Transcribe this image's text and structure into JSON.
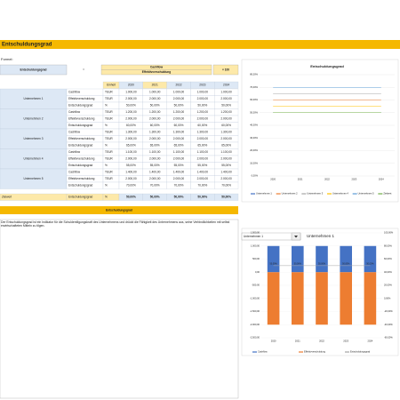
{
  "header": {
    "title": "Entschuldungsgrad"
  },
  "formula": {
    "label": "Formel:",
    "lhs": "Entschuldungsgrad",
    "equals": "=",
    "numerator": "Cashflow",
    "denominator": "Effektivverschuldung",
    "factor": "× 100"
  },
  "table": {
    "unit_header": "Einheit",
    "years": [
      "2020",
      "2021",
      "2022",
      "2023",
      "2024"
    ],
    "companies": [
      {
        "name": "Unternehmen 1",
        "rows": [
          {
            "label": "Cashflow",
            "unit": "TEUR",
            "values": [
              "1.000,00",
              "1.000,00",
              "1.000,00",
              "1.000,00",
              "1.000,00"
            ]
          },
          {
            "label": "Effektivverschuldung",
            "unit": "TEUR",
            "values": [
              "2.000,00",
              "2.000,00",
              "2.000,00",
              "2.000,00",
              "2.000,00"
            ]
          },
          {
            "label": "Entschuldungsgrad",
            "unit": "%",
            "values": [
              "50,00%",
              "50,00%",
              "50,00%",
              "50,00%",
              "50,00%"
            ]
          }
        ]
      },
      {
        "name": "Unternehmen 2",
        "rows": [
          {
            "label": "Cashflow",
            "unit": "TEUR",
            "values": [
              "1.200,00",
              "1.200,00",
              "1.200,00",
              "1.200,00",
              "1.200,00"
            ]
          },
          {
            "label": "Effektivverschuldung",
            "unit": "TEUR",
            "values": [
              "2.000,00",
              "2.000,00",
              "2.000,00",
              "2.000,00",
              "2.000,00"
            ]
          },
          {
            "label": "Entschuldungsgrad",
            "unit": "%",
            "values": [
              "60,00%",
              "60,00%",
              "60,00%",
              "60,00%",
              "60,00%"
            ]
          }
        ]
      },
      {
        "name": "Unternehmen 3",
        "rows": [
          {
            "label": "Cashflow",
            "unit": "TEUR",
            "values": [
              "1.300,00",
              "1.300,00",
              "1.300,00",
              "1.300,00",
              "1.300,00"
            ]
          },
          {
            "label": "Effektivverschuldung",
            "unit": "TEUR",
            "values": [
              "2.000,00",
              "2.000,00",
              "2.000,00",
              "2.000,00",
              "2.000,00"
            ]
          },
          {
            "label": "Entschuldungsgrad",
            "unit": "%",
            "values": [
              "65,00%",
              "65,00%",
              "65,00%",
              "65,00%",
              "65,00%"
            ]
          }
        ]
      },
      {
        "name": "Unternehmen 4",
        "rows": [
          {
            "label": "Cashflow",
            "unit": "TEUR",
            "values": [
              "1.100,00",
              "1.100,00",
              "1.100,00",
              "1.100,00",
              "1.100,00"
            ]
          },
          {
            "label": "Effektivverschuldung",
            "unit": "TEUR",
            "values": [
              "2.000,00",
              "2.000,00",
              "2.000,00",
              "2.000,00",
              "2.000,00"
            ]
          },
          {
            "label": "Entschuldungsgrad",
            "unit": "%",
            "values": [
              "55,00%",
              "55,00%",
              "55,00%",
              "55,00%",
              "55,00%"
            ]
          }
        ]
      },
      {
        "name": "Unternehmen 5",
        "rows": [
          {
            "label": "Cashflow",
            "unit": "TEUR",
            "values": [
              "1.400,00",
              "1.400,00",
              "1.400,00",
              "1.400,00",
              "1.400,00"
            ]
          },
          {
            "label": "Effektivverschuldung",
            "unit": "TEUR",
            "values": [
              "2.000,00",
              "2.000,00",
              "2.000,00",
              "2.000,00",
              "2.000,00"
            ]
          },
          {
            "label": "Entschuldungsgrad",
            "unit": "%",
            "values": [
              "70,00%",
              "70,00%",
              "70,00%",
              "70,00%",
              "70,00%"
            ]
          }
        ]
      }
    ],
    "target": {
      "name": "Zielwert",
      "label": "Entschuldungsgrad",
      "unit": "%",
      "values": [
        "50,00%",
        "50,00%",
        "50,00%",
        "50,00%",
        "50,00%"
      ]
    }
  },
  "section": {
    "title": "Entschuldungsgrad",
    "text": "Der Entschuldungsgrad ist ein Indikator für die Schuldentilgungskraft des Unternehmens und drückt die Fähigkeit des Unternehmens aus, seine Verbindlichkeiten mit selbst erwirtschafteten Mitteln zu tilgen."
  },
  "selector": {
    "value": "Unternehmen 1"
  },
  "chart_data": [
    {
      "type": "line",
      "title": "Entschuldungsgrad",
      "categories": [
        "2020",
        "2021",
        "2022",
        "2023",
        "2024"
      ],
      "ylim": [
        0,
        80
      ],
      "yticks": [
        {
          "value": 0,
          "label": "0,00%"
        },
        {
          "value": 10,
          "label": "10,00%"
        },
        {
          "value": 20,
          "label": "20,00%"
        },
        {
          "value": 30,
          "label": "30,00%"
        },
        {
          "value": 40,
          "label": "40,00%"
        },
        {
          "value": 50,
          "label": "50,00%"
        },
        {
          "value": 60,
          "label": "60,00%"
        },
        {
          "value": 70,
          "label": "70,00%"
        },
        {
          "value": 80,
          "label": "80,00%"
        }
      ],
      "grid": true,
      "legend": "bottom",
      "series": [
        {
          "name": "Unternehmen 1",
          "color": "#4472c4",
          "values": [
            50,
            50,
            50,
            50,
            50
          ]
        },
        {
          "name": "Unternehmen 2",
          "color": "#ed7d31",
          "values": [
            60,
            60,
            60,
            60,
            60
          ]
        },
        {
          "name": "Unternehmen 3",
          "color": "#a5a5a5",
          "values": [
            65,
            65,
            65,
            65,
            65
          ]
        },
        {
          "name": "Unternehmen 4",
          "color": "#ffc000",
          "values": [
            55,
            55,
            55,
            55,
            55
          ]
        },
        {
          "name": "Unternehmen 5",
          "color": "#5b9bd5",
          "values": [
            70,
            70,
            70,
            70,
            70
          ]
        },
        {
          "name": "Zielwert",
          "color": "#70ad47",
          "values": [
            50,
            50,
            50,
            50,
            50
          ]
        }
      ]
    },
    {
      "type": "combo",
      "title": "Unternehmen 1",
      "categories": [
        "2020",
        "2021",
        "2022",
        "2023",
        "2024"
      ],
      "ylim": [
        -2500,
        1500
      ],
      "yticks": [
        {
          "value": -2500,
          "label": "-2.500,00"
        },
        {
          "value": -2000,
          "label": "-2.000,00"
        },
        {
          "value": -1500,
          "label": "-1.500,00"
        },
        {
          "value": -1000,
          "label": "-1.000,00"
        },
        {
          "value": -500,
          "label": "-500,00"
        },
        {
          "value": 0,
          "label": "0,00"
        },
        {
          "value": 500,
          "label": "500,00"
        },
        {
          "value": 1000,
          "label": "1.000,00"
        },
        {
          "value": 1500,
          "label": "1.500,00"
        }
      ],
      "y2lim": [
        -60,
        100
      ],
      "y2ticks": [
        {
          "value": -60,
          "label": "-60,00%"
        },
        {
          "value": -40,
          "label": "-40,00%"
        },
        {
          "value": -20,
          "label": "-20,00%"
        },
        {
          "value": 0,
          "label": "0,00%"
        },
        {
          "value": 20,
          "label": "20,00%"
        },
        {
          "value": 40,
          "label": "40,00%"
        },
        {
          "value": 60,
          "label": "60,00%"
        },
        {
          "value": 80,
          "label": "80,00%"
        },
        {
          "value": 100,
          "label": "100,00%"
        }
      ],
      "legend": "bottom",
      "series": [
        {
          "name": "Cashflow",
          "color": "#4472c4",
          "values": [
            1000,
            1000,
            1000,
            1000,
            1000
          ]
        },
        {
          "name": "Effektivverschuldung",
          "color": "#ed7d31",
          "values": [
            -2000,
            -2000,
            -2000,
            -2000,
            -2000
          ]
        },
        {
          "name": "Entschuldungsgrad",
          "color": "#a5a5a5",
          "axis": "y2",
          "values": [
            50,
            50,
            50,
            50,
            50
          ],
          "value_labels": [
            "50,00%",
            "50,00%",
            "50,00%",
            "50,00%",
            "50,00%"
          ]
        }
      ]
    }
  ]
}
